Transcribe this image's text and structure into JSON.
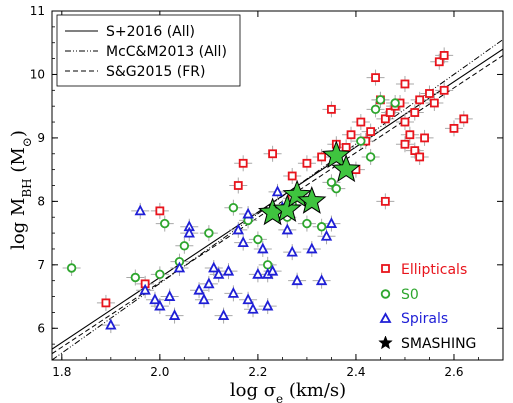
{
  "chart_data": {
    "type": "scatter",
    "xlim": [
      1.78,
      2.7
    ],
    "ylim": [
      5.5,
      11.0
    ],
    "x_ticks": [
      1.8,
      2.0,
      2.2,
      2.4,
      2.6
    ],
    "x_tick_labels": [
      "1.8",
      "2.0",
      "2.2",
      "2.4",
      "2.6"
    ],
    "y_ticks": [
      6,
      7,
      8,
      9,
      10,
      11
    ],
    "y_tick_labels": [
      "6",
      "7",
      "8",
      "9",
      "10",
      "11"
    ],
    "xlabel": {
      "prefix": "log σ",
      "sub": "e",
      "suffix": " (km/s)"
    },
    "ylabel": {
      "prefix": "log M",
      "sub": "BH",
      "suffix": " (M",
      "sub2": "⊙",
      "close": ")"
    },
    "lines": [
      {
        "name": "S+2016 (All)",
        "style": "solid",
        "x": [
          1.78,
          2.7
        ],
        "y": [
          5.67,
          10.4
        ]
      },
      {
        "name": "McC&M2013 (All)",
        "style": "dashdot",
        "x": [
          1.78,
          2.7
        ],
        "y": [
          5.5,
          10.55
        ]
      },
      {
        "name": "S&G2015 (FR)",
        "style": "dashed",
        "x": [
          1.78,
          2.7
        ],
        "y": [
          5.6,
          10.3
        ]
      }
    ],
    "series": [
      {
        "name": "Ellipticals",
        "marker": "square",
        "color": "#e8141c",
        "points": [
          [
            1.89,
            6.4
          ],
          [
            1.97,
            6.7
          ],
          [
            2.0,
            7.85
          ],
          [
            2.17,
            8.6
          ],
          [
            2.16,
            8.25
          ],
          [
            2.23,
            8.75
          ],
          [
            2.27,
            8.4
          ],
          [
            2.27,
            8.05
          ],
          [
            2.3,
            8.6
          ],
          [
            2.33,
            8.7
          ],
          [
            2.35,
            9.45
          ],
          [
            2.36,
            8.9
          ],
          [
            2.38,
            8.85
          ],
          [
            2.39,
            9.05
          ],
          [
            2.4,
            8.5
          ],
          [
            2.41,
            9.25
          ],
          [
            2.43,
            9.1
          ],
          [
            2.44,
            9.95
          ],
          [
            2.45,
            9.6
          ],
          [
            2.46,
            9.3
          ],
          [
            2.47,
            9.4
          ],
          [
            2.48,
            9.5
          ],
          [
            2.49,
            9.55
          ],
          [
            2.5,
            9.25
          ],
          [
            2.5,
            8.9
          ],
          [
            2.51,
            9.05
          ],
          [
            2.52,
            8.8
          ],
          [
            2.53,
            8.7
          ],
          [
            2.54,
            9.0
          ],
          [
            2.55,
            9.7
          ],
          [
            2.56,
            9.55
          ],
          [
            2.57,
            10.2
          ],
          [
            2.58,
            10.3
          ],
          [
            2.58,
            9.75
          ],
          [
            2.6,
            9.15
          ],
          [
            2.62,
            9.3
          ],
          [
            2.52,
            9.4
          ],
          [
            2.53,
            9.6
          ],
          [
            2.46,
            8.0
          ],
          [
            2.5,
            9.85
          ],
          [
            2.42,
            8.95
          ]
        ]
      },
      {
        "name": "S0",
        "marker": "circle",
        "color": "#2ea62e",
        "points": [
          [
            1.82,
            6.95
          ],
          [
            1.95,
            6.8
          ],
          [
            2.0,
            6.85
          ],
          [
            2.01,
            7.65
          ],
          [
            2.04,
            7.05
          ],
          [
            2.05,
            7.3
          ],
          [
            2.1,
            7.5
          ],
          [
            2.15,
            7.9
          ],
          [
            2.18,
            7.7
          ],
          [
            2.2,
            7.4
          ],
          [
            2.22,
            7.0
          ],
          [
            2.26,
            7.75
          ],
          [
            2.27,
            7.95
          ],
          [
            2.3,
            8.0
          ],
          [
            2.3,
            7.65
          ],
          [
            2.33,
            7.6
          ],
          [
            2.35,
            8.3
          ],
          [
            2.38,
            8.55
          ],
          [
            2.41,
            8.95
          ],
          [
            2.44,
            9.45
          ],
          [
            2.45,
            9.6
          ],
          [
            2.48,
            9.55
          ],
          [
            2.43,
            8.7
          ],
          [
            2.36,
            8.2
          ]
        ]
      },
      {
        "name": "Spirals",
        "marker": "triangle",
        "color": "#1f1fd6",
        "points": [
          [
            1.9,
            6.05
          ],
          [
            1.96,
            7.85
          ],
          [
            1.97,
            6.6
          ],
          [
            1.99,
            6.45
          ],
          [
            2.0,
            6.35
          ],
          [
            2.02,
            6.5
          ],
          [
            2.03,
            6.2
          ],
          [
            2.04,
            6.95
          ],
          [
            2.06,
            7.6
          ],
          [
            2.06,
            7.5
          ],
          [
            2.08,
            6.6
          ],
          [
            2.09,
            6.45
          ],
          [
            2.1,
            6.7
          ],
          [
            2.11,
            6.95
          ],
          [
            2.12,
            6.85
          ],
          [
            2.13,
            6.2
          ],
          [
            2.14,
            6.9
          ],
          [
            2.15,
            6.55
          ],
          [
            2.16,
            7.55
          ],
          [
            2.17,
            7.35
          ],
          [
            2.18,
            6.45
          ],
          [
            2.19,
            6.3
          ],
          [
            2.2,
            6.85
          ],
          [
            2.21,
            7.25
          ],
          [
            2.22,
            6.85
          ],
          [
            2.23,
            6.9
          ],
          [
            2.24,
            8.15
          ],
          [
            2.25,
            7.9
          ],
          [
            2.26,
            7.55
          ],
          [
            2.27,
            7.2
          ],
          [
            2.28,
            6.75
          ],
          [
            2.31,
            7.25
          ],
          [
            2.33,
            6.75
          ],
          [
            2.34,
            7.45
          ],
          [
            2.35,
            7.65
          ],
          [
            2.22,
            6.35
          ],
          [
            2.18,
            7.8
          ]
        ]
      },
      {
        "name": "SMASHING",
        "marker": "star",
        "color": "#3fc43f",
        "points": [
          [
            2.23,
            7.82
          ],
          [
            2.26,
            7.87
          ],
          [
            2.28,
            8.1
          ],
          [
            2.31,
            8.0
          ],
          [
            2.36,
            8.72
          ],
          [
            2.38,
            8.5
          ]
        ]
      }
    ],
    "legend_lines_placement": "top-left",
    "legend_markers_placement": "bottom-right",
    "grid": false
  }
}
